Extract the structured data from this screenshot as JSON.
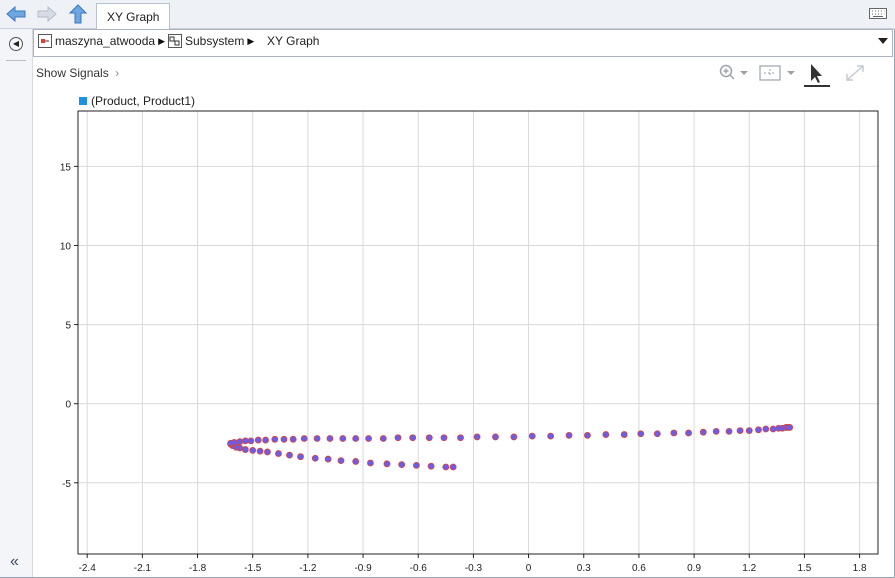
{
  "tab": {
    "label": "XY Graph"
  },
  "breadcrumb": {
    "items": [
      "maszyna_atwooda",
      "Subsystem",
      "XY Graph"
    ]
  },
  "signals": {
    "show_label": "Show Signals"
  },
  "legend": {
    "label": "(Product, Product1)",
    "color": "#1e90e0"
  },
  "toolbar_icons": [
    "back-icon",
    "forward-icon",
    "up-icon",
    "zoom-icon",
    "fit-icon",
    "cursor-icon",
    "expand-icon",
    "keyboard-icon"
  ],
  "colors": {
    "marker_fill": "#6c5ce7",
    "marker_edge": "#d9433e",
    "grid": "#d9d9d9"
  },
  "chart_data": {
    "type": "scatter",
    "xlim": [
      -2.45,
      1.9
    ],
    "ylim": [
      -9.5,
      18.5
    ],
    "grid": true,
    "x_ticks": [
      -2.4,
      -2.1,
      -1.8,
      -1.5,
      -1.2,
      -0.9,
      -0.6,
      -0.3,
      0,
      0.3,
      0.6,
      0.9,
      1.2,
      1.5,
      1.8
    ],
    "y_ticks": [
      15,
      10,
      5,
      0,
      -5
    ],
    "series": [
      {
        "name": "(Product, Product1)",
        "points": [
          [
            -0.41,
            -4.0
          ],
          [
            -0.45,
            -4.0
          ],
          [
            -0.53,
            -3.95
          ],
          [
            -0.61,
            -3.9
          ],
          [
            -0.69,
            -3.85
          ],
          [
            -0.77,
            -3.8
          ],
          [
            -0.86,
            -3.75
          ],
          [
            -0.94,
            -3.65
          ],
          [
            -1.02,
            -3.6
          ],
          [
            -1.09,
            -3.5
          ],
          [
            -1.16,
            -3.45
          ],
          [
            -1.24,
            -3.35
          ],
          [
            -1.3,
            -3.25
          ],
          [
            -1.36,
            -3.15
          ],
          [
            -1.42,
            -3.05
          ],
          [
            -1.46,
            -3.0
          ],
          [
            -1.5,
            -2.95
          ],
          [
            -1.54,
            -2.9
          ],
          [
            -1.57,
            -2.8
          ],
          [
            -1.59,
            -2.75
          ],
          [
            -1.61,
            -2.65
          ],
          [
            -1.62,
            -2.55
          ],
          [
            -1.62,
            -2.5
          ],
          [
            -1.6,
            -2.45
          ],
          [
            -1.57,
            -2.4
          ],
          [
            -1.54,
            -2.35
          ],
          [
            -1.51,
            -2.35
          ],
          [
            -1.47,
            -2.3
          ],
          [
            -1.43,
            -2.3
          ],
          [
            -1.38,
            -2.25
          ],
          [
            -1.33,
            -2.25
          ],
          [
            -1.28,
            -2.25
          ],
          [
            -1.22,
            -2.2
          ],
          [
            -1.15,
            -2.2
          ],
          [
            -1.08,
            -2.2
          ],
          [
            -1.01,
            -2.2
          ],
          [
            -0.94,
            -2.2
          ],
          [
            -0.87,
            -2.2
          ],
          [
            -0.79,
            -2.2
          ],
          [
            -0.71,
            -2.15
          ],
          [
            -0.63,
            -2.15
          ],
          [
            -0.54,
            -2.15
          ],
          [
            -0.46,
            -2.15
          ],
          [
            -0.37,
            -2.15
          ],
          [
            -0.28,
            -2.1
          ],
          [
            -0.18,
            -2.1
          ],
          [
            -0.08,
            -2.1
          ],
          [
            0.02,
            -2.05
          ],
          [
            0.12,
            -2.05
          ],
          [
            0.22,
            -2.0
          ],
          [
            0.32,
            -2.0
          ],
          [
            0.42,
            -1.95
          ],
          [
            0.52,
            -1.95
          ],
          [
            0.61,
            -1.9
          ],
          [
            0.7,
            -1.9
          ],
          [
            0.79,
            -1.85
          ],
          [
            0.87,
            -1.85
          ],
          [
            0.95,
            -1.8
          ],
          [
            1.02,
            -1.75
          ],
          [
            1.09,
            -1.75
          ],
          [
            1.15,
            -1.7
          ],
          [
            1.2,
            -1.7
          ],
          [
            1.25,
            -1.65
          ],
          [
            1.29,
            -1.6
          ],
          [
            1.33,
            -1.6
          ],
          [
            1.36,
            -1.55
          ],
          [
            1.38,
            -1.55
          ],
          [
            1.4,
            -1.5
          ],
          [
            1.41,
            -1.5
          ],
          [
            1.42,
            -1.5
          ]
        ]
      }
    ]
  }
}
